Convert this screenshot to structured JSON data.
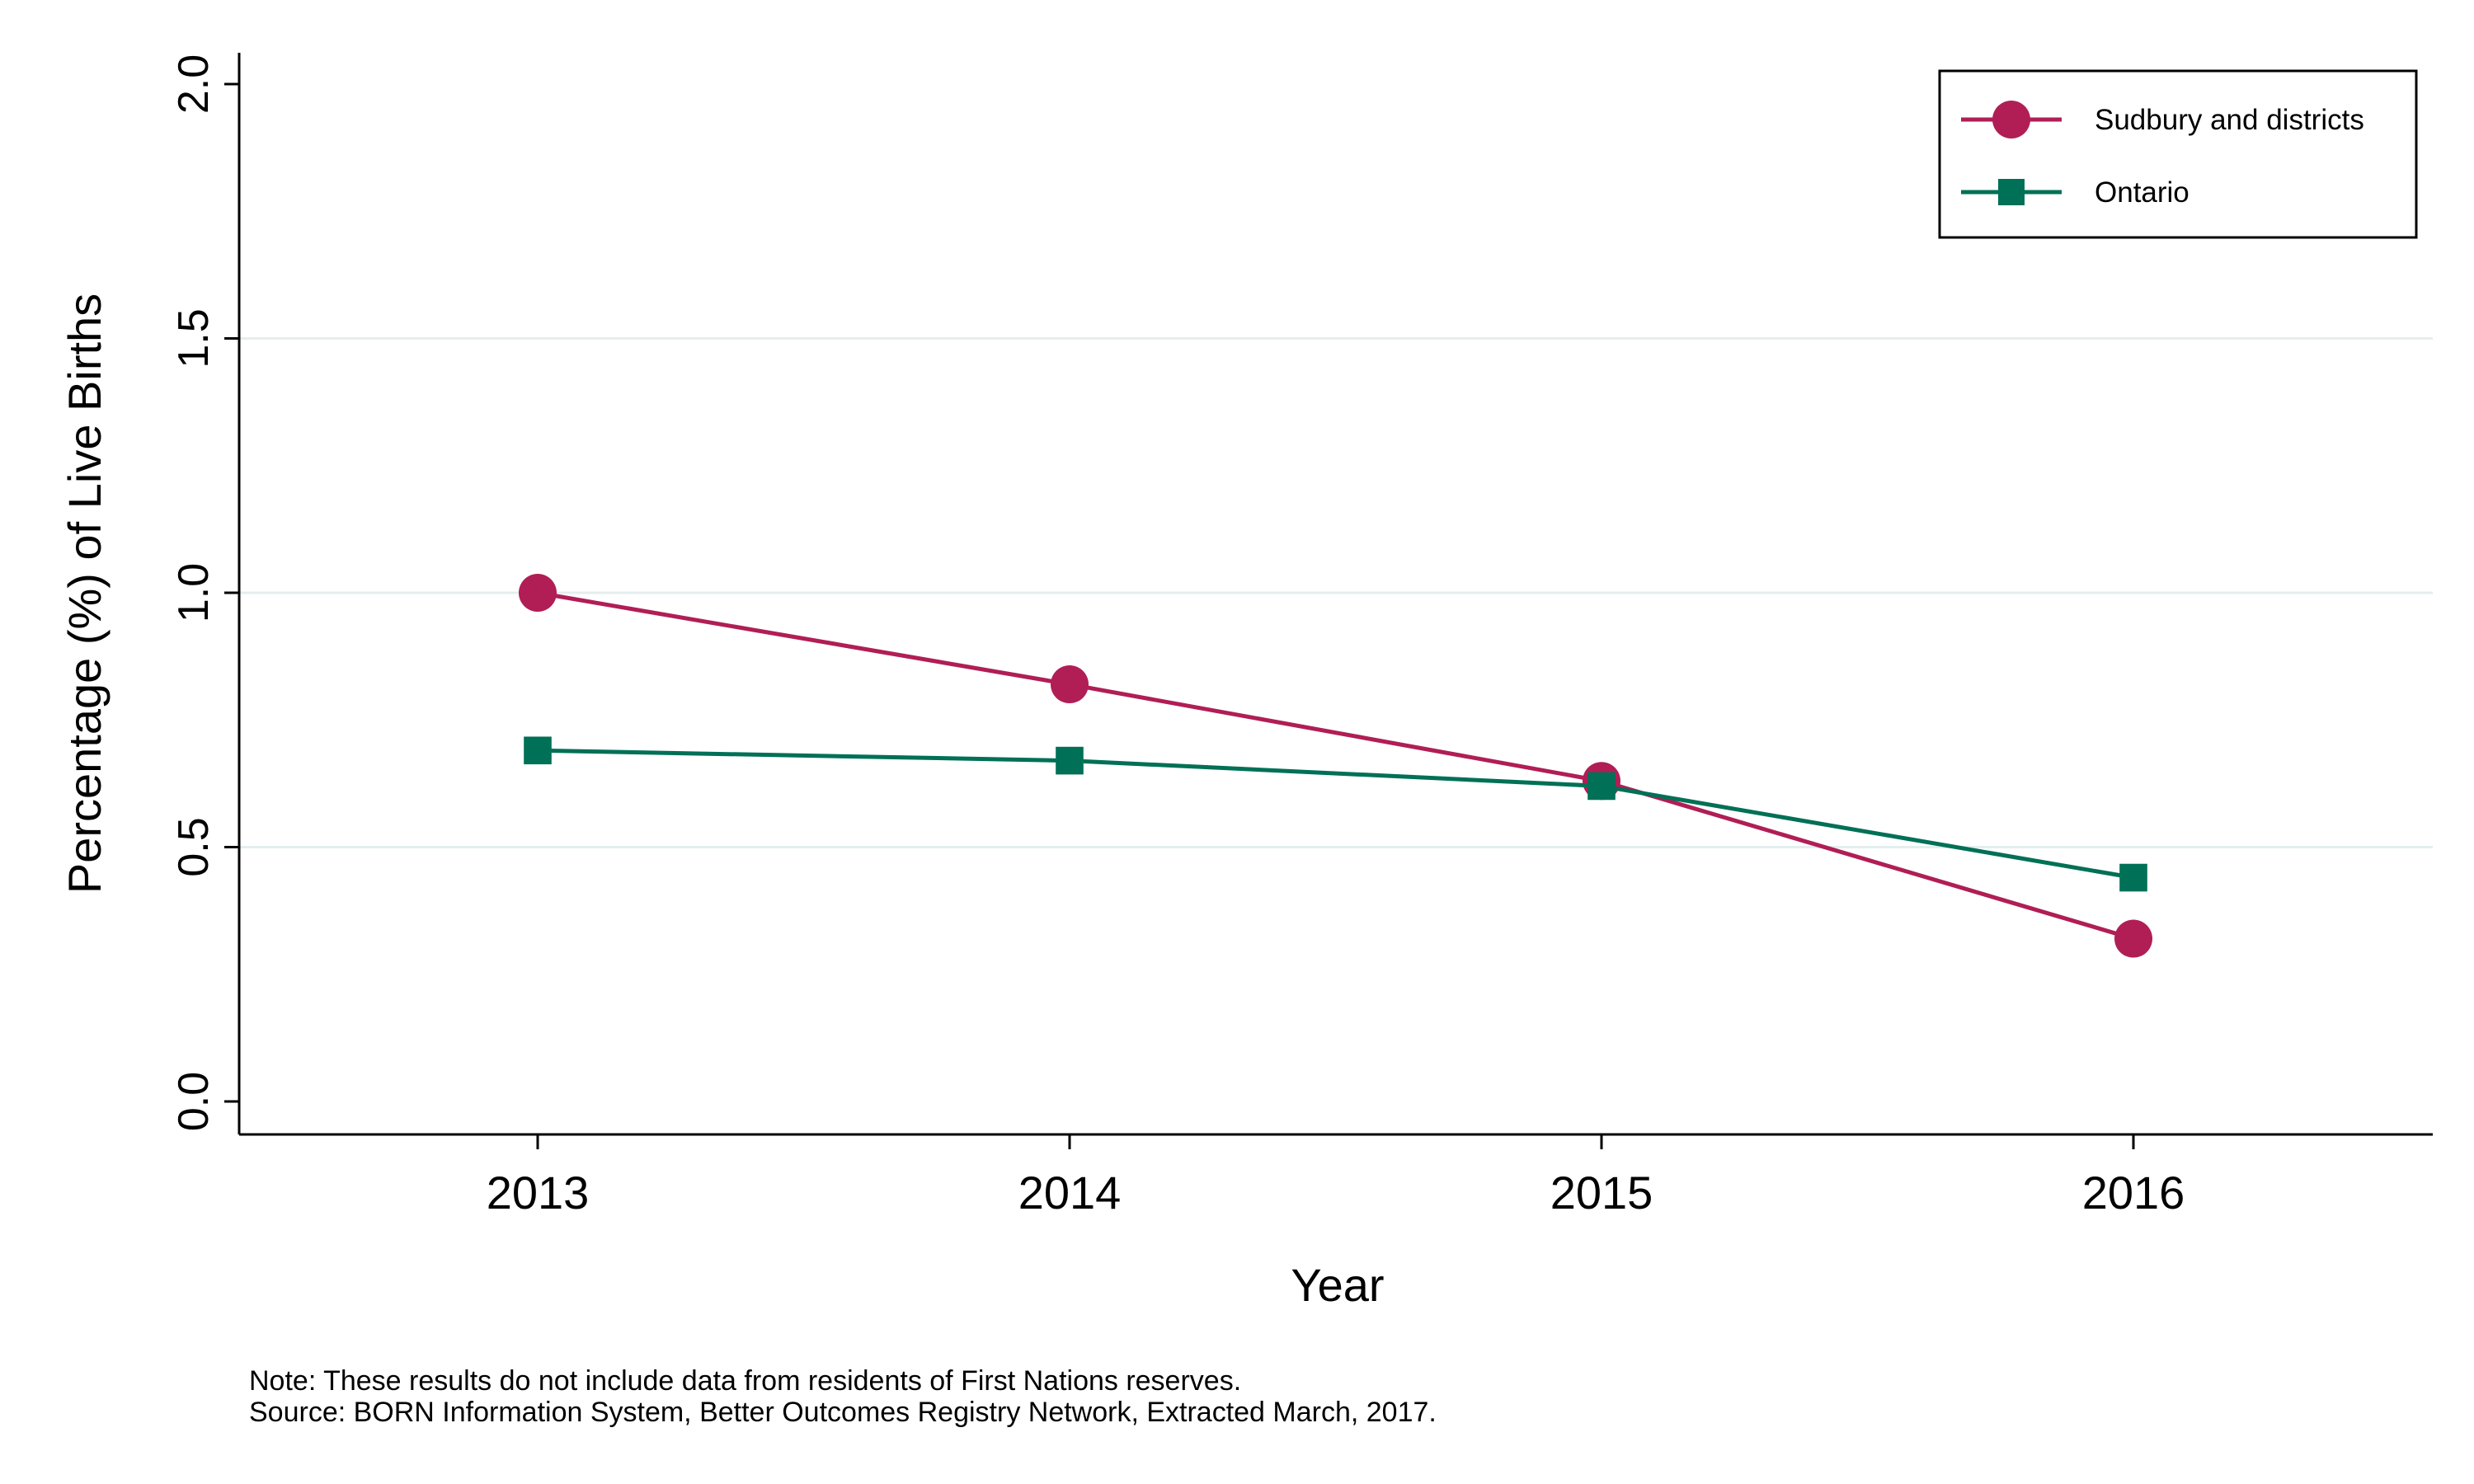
{
  "chart_data": {
    "type": "line",
    "title": "",
    "xlabel": "Year",
    "ylabel": "Percentage (%) of Live Births",
    "categories": [
      "2013",
      "2014",
      "2015",
      "2016"
    ],
    "ylim": [
      0,
      2.0
    ],
    "yticks": [
      "0.0",
      "0.5",
      "1.0",
      "1.5",
      "2.0"
    ],
    "grid": true,
    "legend_position": "top-right",
    "series": [
      {
        "name": "Sudbury and districts",
        "values": [
          1.0,
          0.82,
          0.63,
          0.32
        ],
        "color": "#b01e55",
        "marker": "circle"
      },
      {
        "name": "Ontario",
        "values": [
          0.69,
          0.67,
          0.62,
          0.44
        ],
        "color": "#007056",
        "marker": "square"
      }
    ]
  },
  "notes": {
    "note": "Note: These results do not include data from residents of First Nations reserves.",
    "source": "Source: BORN Information System, Better Outcomes Registry Network, Extracted March, 2017."
  }
}
